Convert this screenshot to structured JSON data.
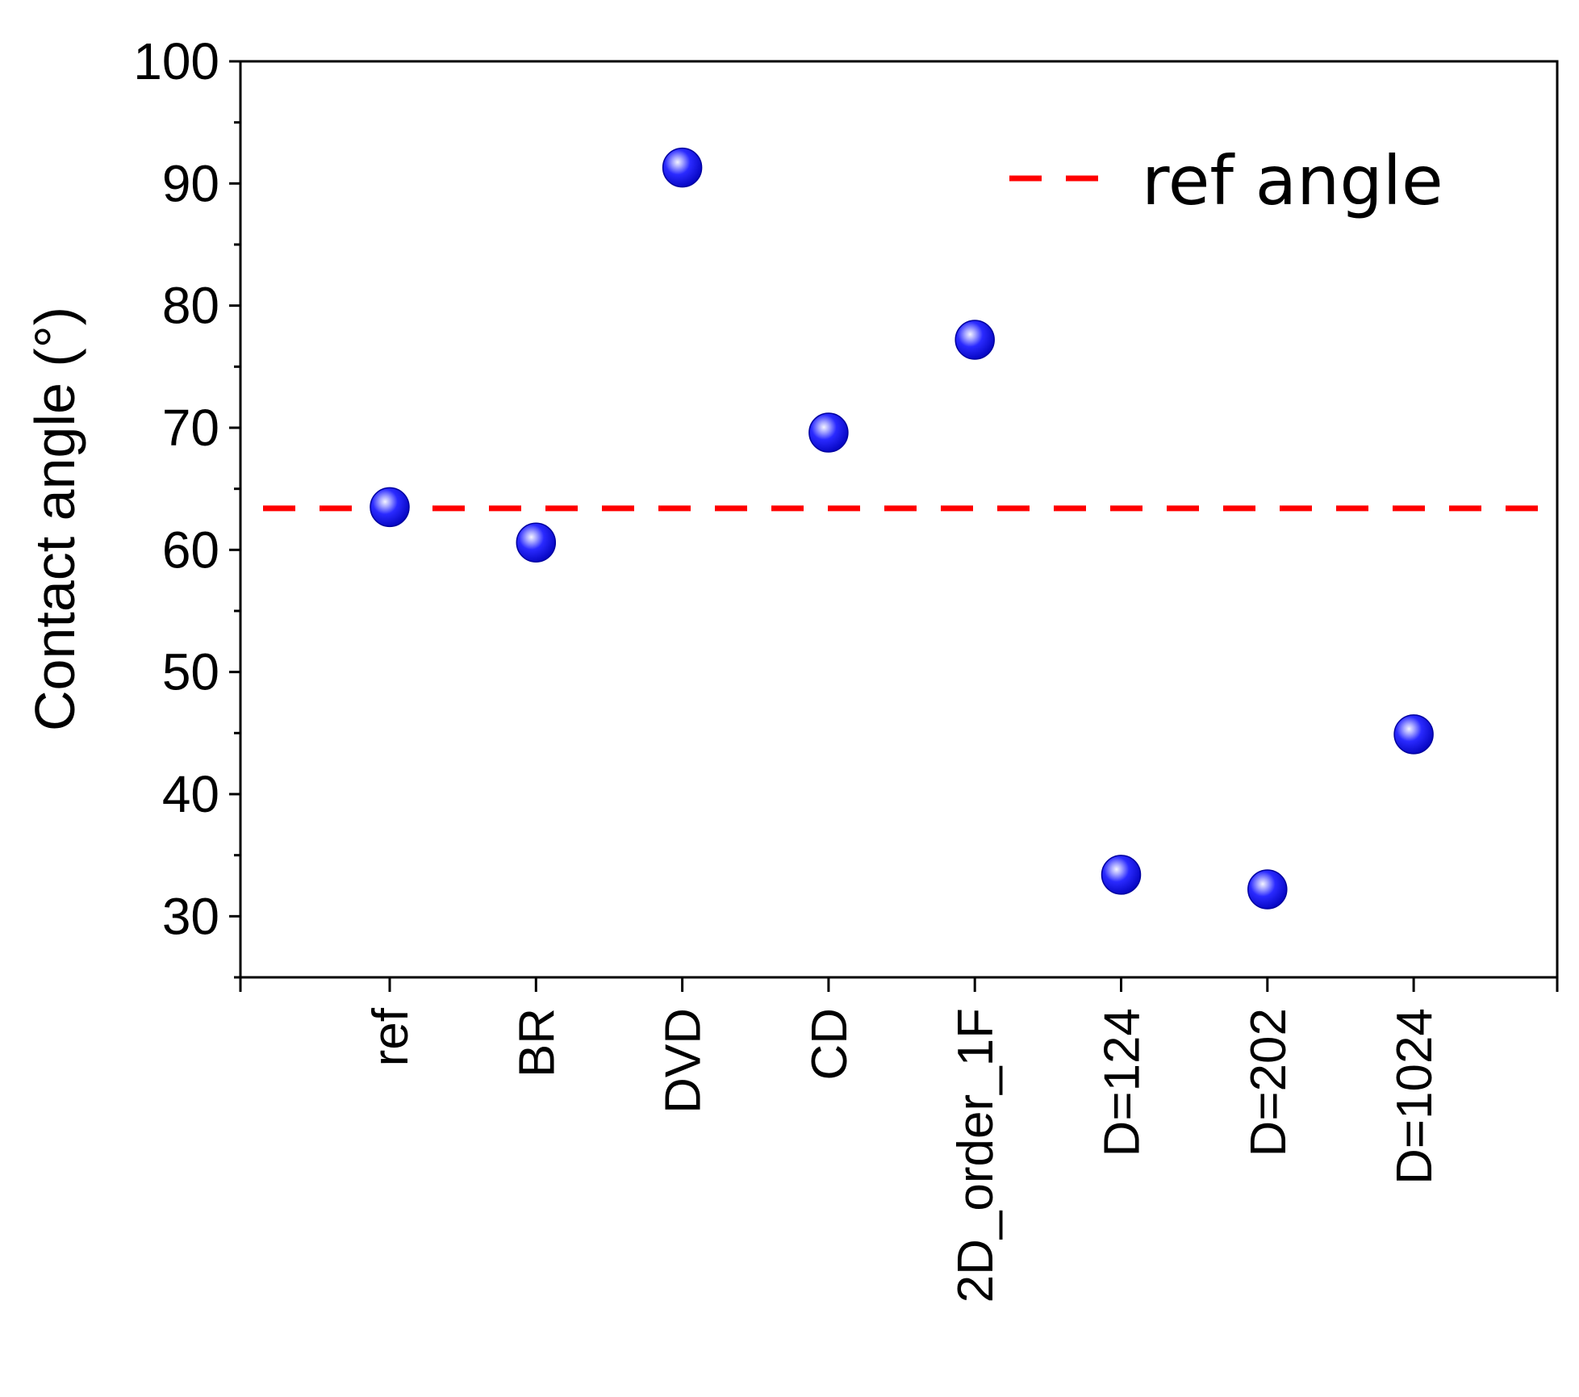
{
  "chart_data": {
    "type": "scatter",
    "title": "",
    "xlabel": "",
    "ylabel": "Contact angle (°)",
    "categories": [
      "ref",
      "BR",
      "DVD",
      "CD",
      "2D_order_1F",
      "D=124",
      "D=202",
      "D=1024"
    ],
    "series": [
      {
        "values": [
          63.5,
          60.6,
          91.3,
          69.6,
          77.2,
          33.4,
          32.2,
          44.9
        ],
        "color": "#1010e8",
        "marker": "sphere"
      }
    ],
    "reference_line": {
      "name": "ref angle",
      "value": 63.4,
      "color": "#ff0000",
      "style": "dashed"
    },
    "ylim": [
      25,
      100
    ],
    "yticks": [
      30,
      40,
      50,
      60,
      70,
      80,
      90,
      100
    ],
    "grid": false,
    "legend_position": "top-right"
  }
}
